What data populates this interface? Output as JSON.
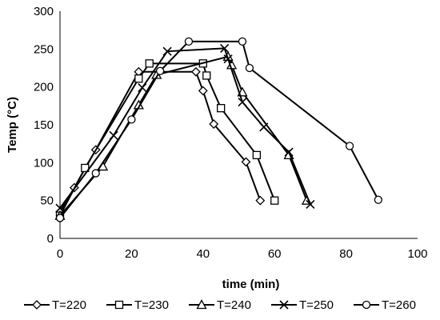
{
  "chart_data": {
    "type": "line",
    "title": "",
    "xlabel": "time (min)",
    "ylabel": "Temp (°C)",
    "xlim": [
      0,
      100
    ],
    "ylim": [
      0,
      300
    ],
    "xticks": [
      0,
      20,
      40,
      60,
      80,
      100
    ],
    "yticks": [
      0,
      50,
      100,
      150,
      200,
      250,
      300
    ],
    "grid": false,
    "legend_position": "bottom",
    "series": [
      {
        "name": "T=220",
        "marker": "diamond",
        "x": [
          0,
          4,
          10,
          22,
          38,
          40,
          43,
          52,
          56
        ],
        "y": [
          35,
          67,
          117,
          220,
          220,
          195,
          151,
          101,
          50
        ]
      },
      {
        "name": "T=230",
        "marker": "square",
        "x": [
          0,
          7,
          22,
          25,
          40,
          41,
          45,
          55,
          60
        ],
        "y": [
          30,
          93,
          211,
          231,
          231,
          215,
          172,
          110,
          50
        ]
      },
      {
        "name": "T=240",
        "marker": "triangle",
        "x": [
          0,
          12,
          22,
          27,
          47,
          48,
          51,
          64,
          69
        ],
        "y": [
          30,
          95,
          176,
          216,
          240,
          229,
          193,
          110,
          50
        ]
      },
      {
        "name": "T=250",
        "marker": "x",
        "x": [
          0,
          15,
          23,
          30,
          46,
          47,
          51,
          57,
          64,
          70
        ],
        "y": [
          40,
          136,
          199,
          247,
          251,
          237,
          180,
          147,
          114,
          45
        ]
      },
      {
        "name": "T=260",
        "marker": "circle",
        "x": [
          0,
          10,
          20,
          28,
          36,
          51,
          53,
          81,
          89
        ],
        "y": [
          27,
          86,
          157,
          221,
          260,
          260,
          225,
          122,
          51
        ]
      }
    ]
  }
}
